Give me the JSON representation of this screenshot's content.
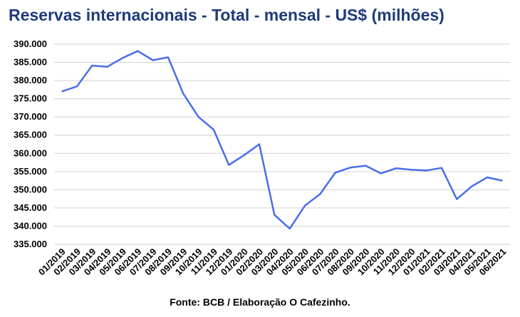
{
  "title": "Reservas internacionais - Total - mensal - US$ (milhões)",
  "source": "Fonte: BCB / Elaboração O Cafezinho.",
  "chart_data": {
    "type": "line",
    "title": "Reservas internacionais - Total - mensal - US$ (milhões)",
    "xlabel": "",
    "ylabel": "",
    "ylim": [
      335000,
      390000
    ],
    "yticks": [
      335000,
      340000,
      345000,
      350000,
      355000,
      360000,
      365000,
      370000,
      375000,
      380000,
      385000,
      390000
    ],
    "ytick_labels": [
      "335.000",
      "340.000",
      "345.000",
      "350.000",
      "355.000",
      "360.000",
      "365.000",
      "370.000",
      "375.000",
      "380.000",
      "385.000",
      "390.000"
    ],
    "grid": true,
    "legend": "none",
    "line_color": "#4a6ee8",
    "categories": [
      "01/2019",
      "02/2019",
      "03/2019",
      "04/2019",
      "05/2019",
      "06/2019",
      "07/2019",
      "08/2019",
      "09/2019",
      "10/2019",
      "11/2019",
      "12/2019",
      "01/2020",
      "02/2020",
      "03/2020",
      "04/2020",
      "05/2020",
      "06/2020",
      "07/2020",
      "08/2020",
      "09/2020",
      "10/2020",
      "11/2020",
      "12/2020",
      "01/2021",
      "02/2021",
      "03/2021",
      "04/2021",
      "05/2021",
      "06/2021"
    ],
    "series": [
      {
        "values": [
          377000,
          378400,
          384100,
          383800,
          386200,
          388100,
          385600,
          386400,
          376400,
          370000,
          366500,
          356800,
          359500,
          362500,
          343100,
          339300,
          345600,
          348800,
          354700,
          356100,
          356600,
          354500,
          355900,
          355500,
          355300,
          356000,
          347400,
          351000,
          353400,
          352500
        ]
      }
    ]
  }
}
